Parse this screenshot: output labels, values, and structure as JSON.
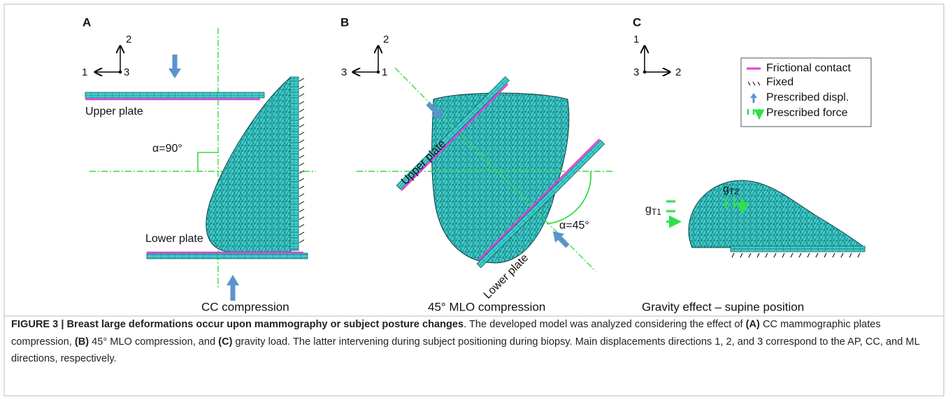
{
  "panels": [
    {
      "label": "A",
      "axes": [
        "2",
        "1",
        "3"
      ],
      "title": "CC compression",
      "annotations": [
        "Upper plate",
        "Lower plate",
        "α=90°"
      ]
    },
    {
      "label": "B",
      "axes": [
        "2",
        "3",
        "1"
      ],
      "title": "45° MLO compression",
      "annotations": [
        "Upper plate",
        "Lower plate",
        "α=45°"
      ]
    },
    {
      "label": "C",
      "axes": [
        "1",
        "3",
        "2"
      ],
      "title": "Gravity effect – supine position",
      "loads": [
        {
          "base": "g",
          "sub": "T2"
        },
        {
          "base": "g",
          "sub": "T1"
        }
      ]
    }
  ],
  "legend": [
    "Frictional contact",
    "Fixed",
    "Prescribed displ.",
    "Prescribed force"
  ],
  "caption": {
    "runs": [
      {
        "text": "FIGURE 3 | Breast large deformations occur upon mammography or subject posture changes",
        "bold": true
      },
      {
        "text": ". The developed model was analyzed considering the effect of ",
        "bold": false
      },
      {
        "text": "(A)",
        "bold": true
      },
      {
        "text": " CC mammographic plates compression, ",
        "bold": false
      },
      {
        "text": "(B)",
        "bold": true
      },
      {
        "text": " 45° MLO compression, and ",
        "bold": false
      },
      {
        "text": "(C)",
        "bold": true
      },
      {
        "text": " gravity load. The latter intervening during subject positioning during biopsy. Main displacements directions 1, 2, and 3 correspond to the AP, CC, and ML directions, respectively.",
        "bold": false
      }
    ]
  }
}
